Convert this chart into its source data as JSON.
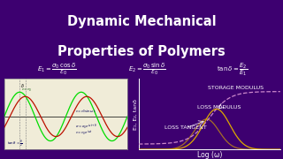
{
  "bg_color": "#3D0070",
  "title_line1": "Dynamic Mechanical",
  "title_line2": "Properties of Polymers",
  "title_color": "#FFFFFF",
  "title_fontsize": 10.5,
  "formula_color": "#FFFFFF",
  "formula_fontsize": 5.0,
  "left_panel_bg": "#F0ECD8",
  "left_panel_border": "#888888",
  "sine_color_green": "#00DD00",
  "sine_color_red": "#BB1100",
  "storage_modulus_color": "#CC88CC",
  "loss_color": "#DDAA00",
  "label_storage": "STORAGE MODULUS",
  "label_loss_mod": "LOSS MODULUS",
  "label_loss_tan": "LOSS TANGENT",
  "xlabel": "Log (ω)",
  "ylabel": "E₁, E₂, tanδ",
  "label_color": "#FFFFFF",
  "label_fontsize": 4.5,
  "border_color": "#000000",
  "black_bar_top": "#000000",
  "black_bar_bottom": "#000000"
}
